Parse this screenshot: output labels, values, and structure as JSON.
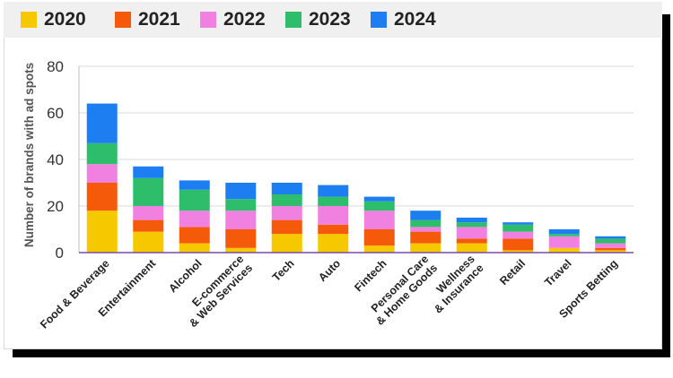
{
  "chart_data": {
    "type": "bar",
    "stacked": true,
    "title": "",
    "xlabel": "",
    "ylabel": "Number of brands with ad spots",
    "ylim": [
      0,
      80
    ],
    "yticks": [
      0,
      20,
      40,
      60,
      80
    ],
    "legend_position": "top",
    "categories": [
      "Food & Beverage",
      "Entertainment",
      "Alcohol",
      "E-commerce & Web Services",
      "Tech",
      "Auto",
      "Fintech",
      "Personal Care & Home Goods",
      "Wellness & Insurance",
      "Retail",
      "Travel",
      "Sports Betting"
    ],
    "category_lines": [
      [
        "Food & Beverage"
      ],
      [
        "Entertainment"
      ],
      [
        "Alcohol"
      ],
      [
        "E-commerce",
        "& Web Services"
      ],
      [
        "Tech"
      ],
      [
        "Auto"
      ],
      [
        "Fintech"
      ],
      [
        "Personal Care",
        "& Home Goods"
      ],
      [
        "Wellness",
        "& Insurance"
      ],
      [
        "Retail"
      ],
      [
        "Travel"
      ],
      [
        "Sports Betting"
      ]
    ],
    "series": [
      {
        "name": "2020",
        "color": "#f5c800",
        "values": [
          18,
          9,
          4,
          2,
          8,
          8,
          3,
          4,
          4,
          1,
          2,
          1
        ]
      },
      {
        "name": "2021",
        "color": "#f55a0a",
        "values": [
          12,
          5,
          7,
          8,
          6,
          4,
          7,
          5,
          2,
          5,
          0,
          1
        ]
      },
      {
        "name": "2022",
        "color": "#f081e0",
        "values": [
          8,
          6,
          7,
          8,
          6,
          8,
          8,
          2,
          5,
          3,
          5,
          2
        ]
      },
      {
        "name": "2023",
        "color": "#2ebd6b",
        "values": [
          9,
          12,
          9,
          5,
          5,
          4,
          4,
          3,
          2,
          3,
          1,
          2
        ]
      },
      {
        "name": "2024",
        "color": "#1c7ef0",
        "values": [
          17,
          5,
          4,
          7,
          5,
          5,
          2,
          4,
          2,
          1,
          2,
          1
        ]
      }
    ]
  }
}
